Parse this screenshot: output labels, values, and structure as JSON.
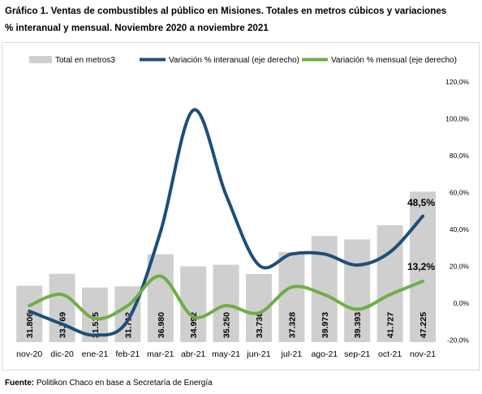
{
  "title": {
    "line1": "Gráfico 1. Ventas de combustibles al público en Misiones. Totales en metros cúbicos y variaciones",
    "line2": "% interanual y mensual. Noviembre 2020 a noviembre 2021"
  },
  "source": {
    "label": "Fuente:",
    "text": " Politikon Chaco en base a Secretaría de Energía"
  },
  "colors": {
    "bars": "#cfcfcf",
    "interanual": "#1f4e79",
    "mensual": "#70ad47"
  },
  "chart_data": {
    "type": "bar",
    "categories": [
      "nov-20",
      "dic-20",
      "ene-21",
      "feb-21",
      "mar-21",
      "abr-21",
      "may-21",
      "jun-21",
      "jul-21",
      "ago-21",
      "sep-21",
      "oct-21",
      "nov-21"
    ],
    "bar_labels": [
      "31.806",
      "33.769",
      "31.515",
      "31.712",
      "36.980",
      "34.992",
      "35.250",
      "33.736",
      "37.328",
      "39.973",
      "39.393",
      "41.727",
      "47.225"
    ],
    "series": [
      {
        "name": "Total en metros3",
        "type": "bar",
        "axis": "left",
        "values": [
          31806,
          33769,
          31515,
          31712,
          36980,
          34992,
          35250,
          33736,
          37328,
          39973,
          39393,
          41727,
          47225
        ]
      },
      {
        "name": "Variación % interanual (eje derecho)",
        "type": "line",
        "axis": "right",
        "values": [
          -3,
          -10,
          -16,
          -8,
          40,
          106,
          60,
          22,
          28,
          28,
          22,
          29,
          48.5
        ]
      },
      {
        "name": "Variación % mensual (eje derecho)",
        "type": "line",
        "axis": "right",
        "values": [
          0,
          6,
          -7,
          0,
          16,
          -6,
          0,
          -4,
          10,
          6,
          -2,
          6,
          13.2
        ]
      }
    ],
    "y2_ticks": [
      "120,0%",
      "100,0%",
      "80,0%",
      "60,0%",
      "40,0%",
      "20,0%",
      "0,0%",
      "-20,0%"
    ],
    "y2lim": [
      -20,
      120
    ],
    "annotations": [
      "48,5%",
      "13,2%"
    ],
    "legend": "top"
  }
}
